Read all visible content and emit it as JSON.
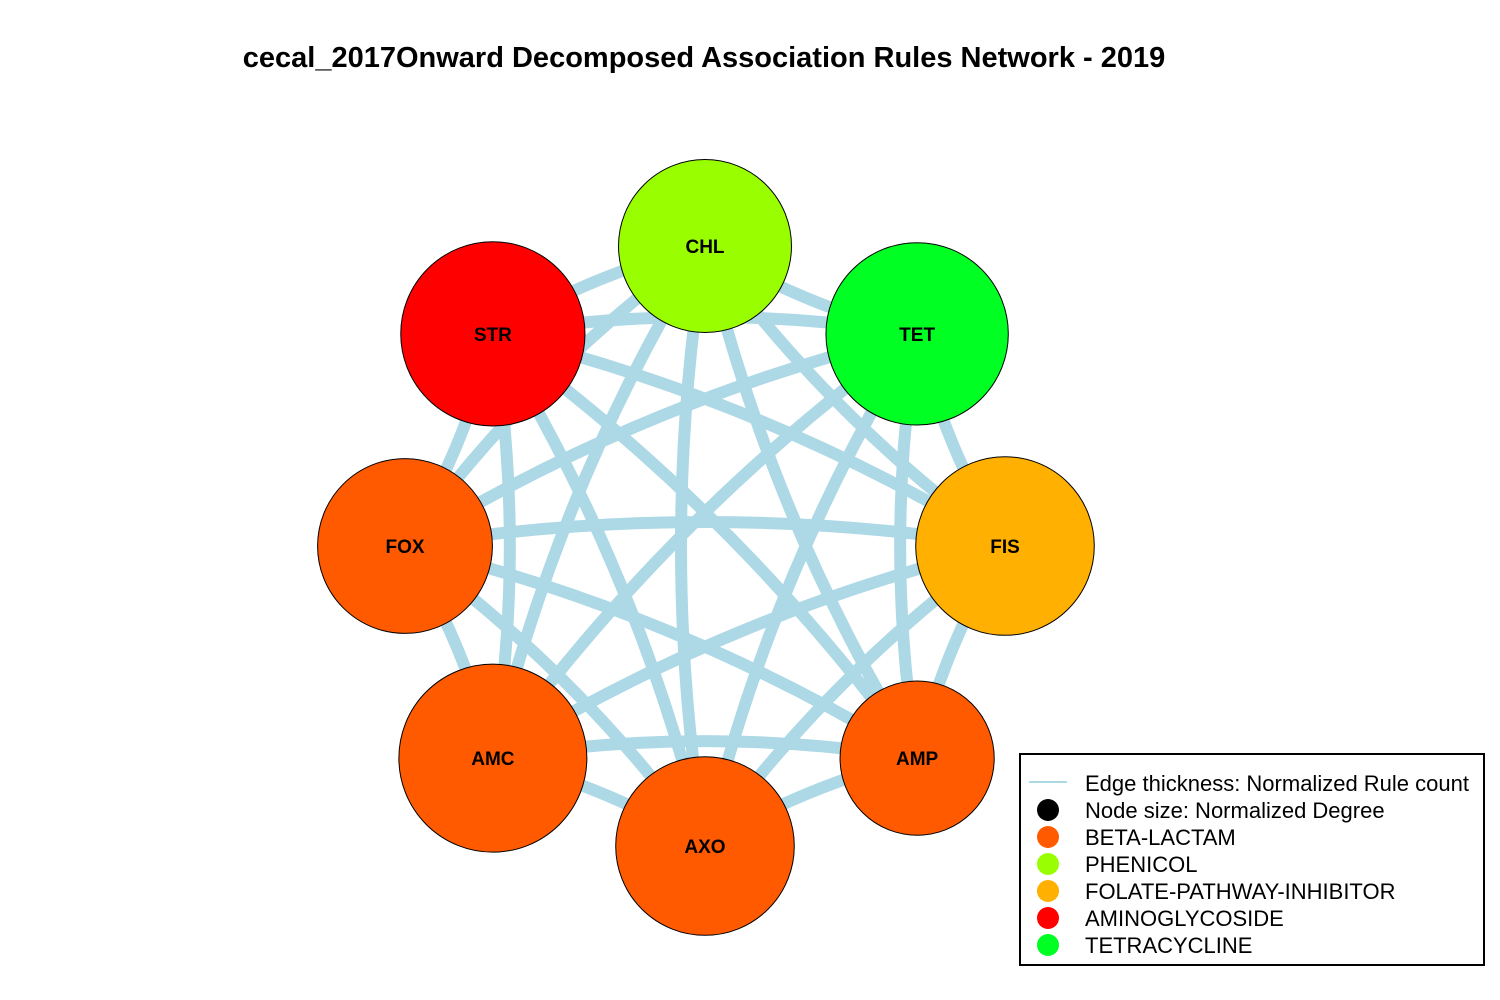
{
  "title": "cecal_2017Onward Decomposed Association Rules Network - 2019",
  "edge_color": "#ADD8E6",
  "nodes": [
    {
      "id": "CHL",
      "class": "PHENICOL",
      "color": "#99FF00",
      "size": 0.92
    },
    {
      "id": "TET",
      "class": "TETRACYCLINE",
      "color": "#00FF22",
      "size": 0.97
    },
    {
      "id": "FIS",
      "class": "FOLATE-PATHWAY-INHIBITOR",
      "color": "#FFB000",
      "size": 0.95
    },
    {
      "id": "AMP",
      "class": "BETA-LACTAM",
      "color": "#FF5A00",
      "size": 0.82
    },
    {
      "id": "AXO",
      "class": "BETA-LACTAM",
      "color": "#FF5A00",
      "size": 0.95
    },
    {
      "id": "AMC",
      "class": "BETA-LACTAM",
      "color": "#FF5A00",
      "size": 1.0
    },
    {
      "id": "FOX",
      "class": "BETA-LACTAM",
      "color": "#FF5A00",
      "size": 0.93
    },
    {
      "id": "STR",
      "class": "AMINOGLYCOSIDE",
      "color": "#FF0000",
      "size": 0.98
    }
  ],
  "legend": {
    "items": [
      {
        "label": "Edge thickness: Normalized Rule count",
        "symbol": "line",
        "color": "#ADD8E6"
      },
      {
        "label": "Node size: Normalized Degree",
        "symbol": "circle",
        "color": "#000000"
      },
      {
        "label": "BETA-LACTAM",
        "symbol": "circle",
        "color": "#FF5A00"
      },
      {
        "label": "PHENICOL",
        "symbol": "circle",
        "color": "#99FF00"
      },
      {
        "label": "FOLATE-PATHWAY-INHIBITOR",
        "symbol": "circle",
        "color": "#FFB000"
      },
      {
        "label": "AMINOGLYCOSIDE",
        "symbol": "circle",
        "color": "#FF0000"
      },
      {
        "label": "TETRACYCLINE",
        "symbol": "circle",
        "color": "#00FF22"
      }
    ]
  }
}
